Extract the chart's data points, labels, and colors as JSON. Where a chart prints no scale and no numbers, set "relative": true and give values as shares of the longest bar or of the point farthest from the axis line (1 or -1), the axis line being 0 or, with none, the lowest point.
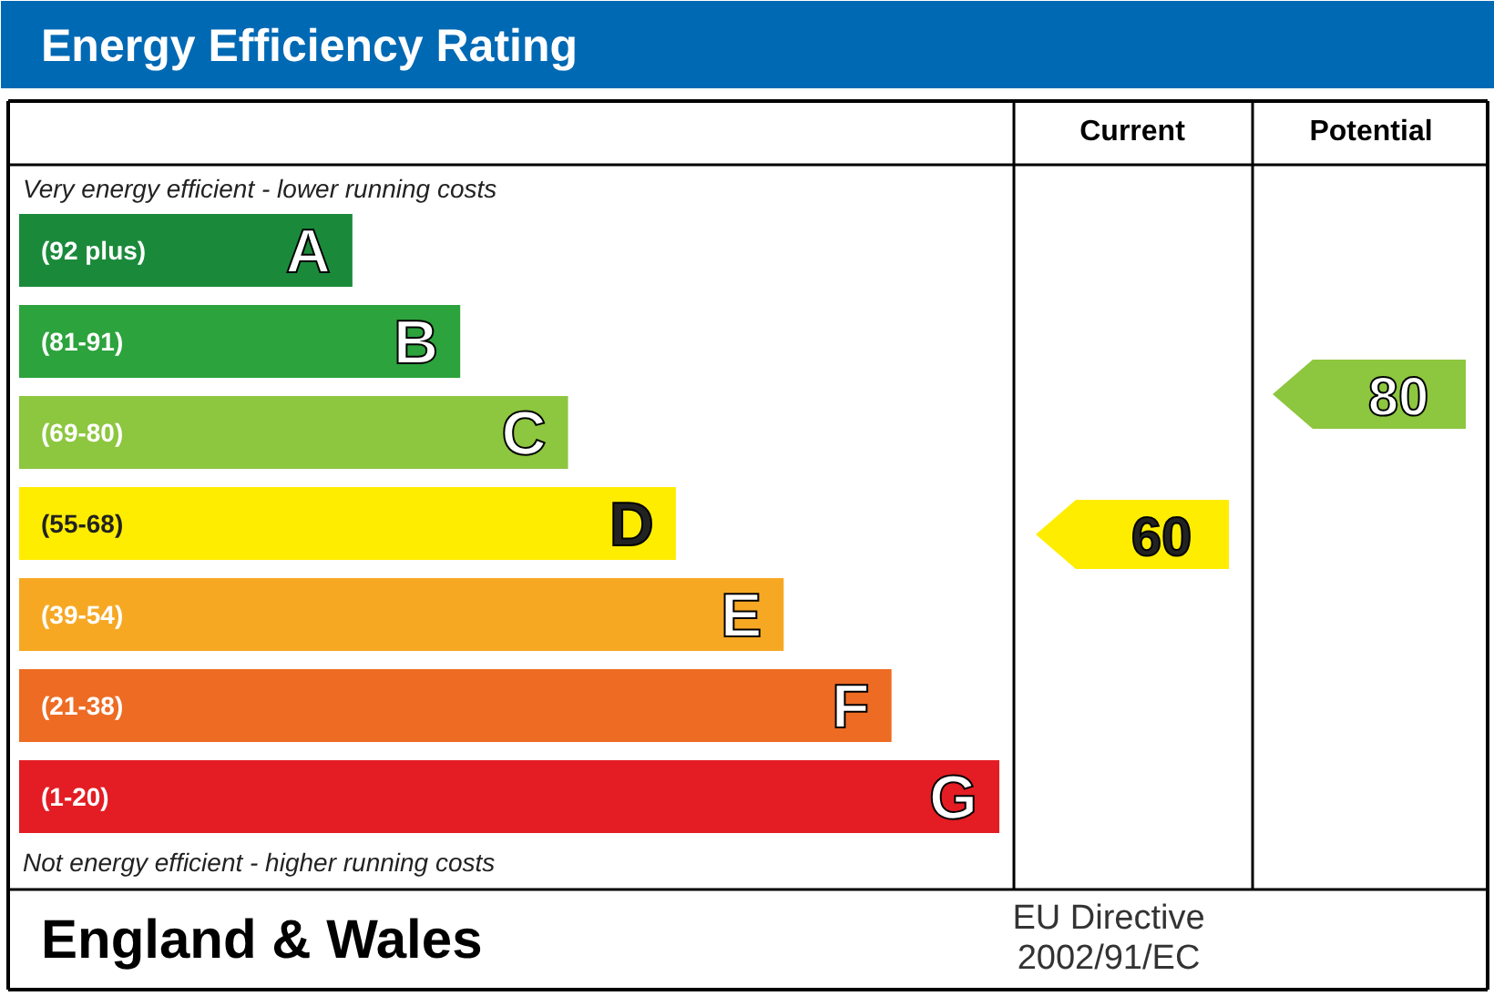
{
  "chart_data": {
    "type": "bar",
    "orientation": "horizontal",
    "relative": true,
    "title": "Energy Efficiency Rating",
    "categories": [
      "A",
      "B",
      "C",
      "D",
      "E",
      "F",
      "G"
    ],
    "values": [
      0.34,
      0.45,
      0.56,
      0.67,
      0.78,
      0.89,
      1.0
    ],
    "colors": [
      "#1a8a3a",
      "#2ca33c",
      "#8dc63f",
      "#ffed00",
      "#f7a823",
      "#ee6b23",
      "#e31d23"
    ],
    "annotations": [
      "Current",
      "Potential",
      "Very energy efficient - lower running costs",
      "Not energy efficient - higher running costs",
      "England & Wales",
      "EU Directive",
      "2002/91/EC",
      "(92 plus)",
      "(81-91)",
      "(69-80)",
      "(55-68)",
      "(39-54)",
      "(21-38)",
      "(1-20)",
      "60",
      "80"
    ]
  }
}
